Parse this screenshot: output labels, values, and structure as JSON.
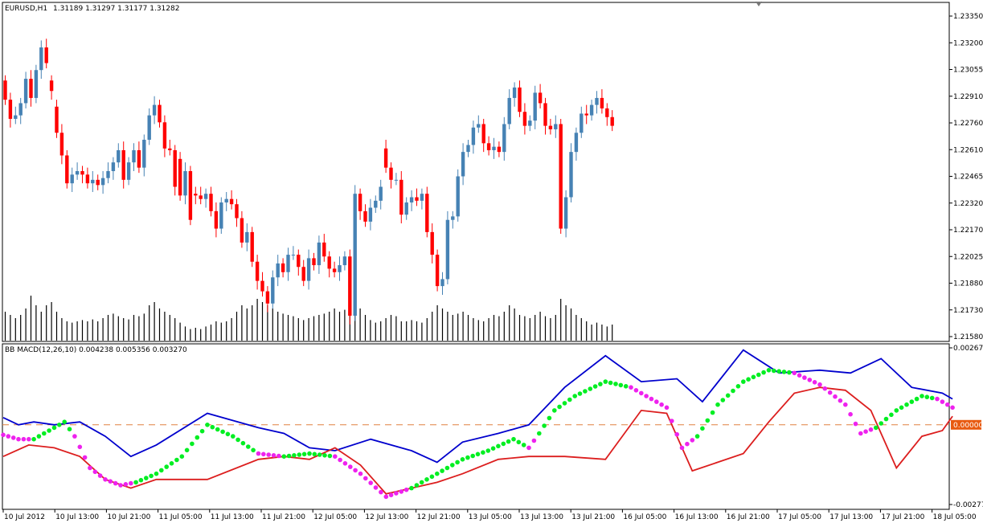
{
  "colors": {
    "background": "#ffffff",
    "frame": "#000000",
    "bull": "#4682b4",
    "bear": "#ff0000",
    "volume": "#000000",
    "macd_upper": "#0000cd",
    "macd_lower": "#dc1e1e",
    "signal_up": "#00ee22",
    "signal_down": "#ee22ee",
    "zero_line": "#e08040",
    "zero_badge": "#e85a10",
    "zero_badge_text": "#ffffff"
  },
  "chart_data": [
    {
      "type": "candlestick",
      "header": {
        "symbol": "EURUSD,H1",
        "ohlc": "1.31189 1.31297 1.31177 1.31282"
      },
      "ylim": [
        1.2158,
        1.2342
      ],
      "y_ticks": [
        "1.23350",
        "1.23200",
        "1.23055",
        "1.22910",
        "1.22760",
        "1.22610",
        "1.22465",
        "1.22320",
        "1.22170",
        "1.22025",
        "1.21880",
        "1.21730",
        "1.21580"
      ],
      "candles_close": [
        1.2294,
        1.2283,
        1.2285,
        1.2292,
        1.2306,
        1.2295,
        1.2311,
        1.2324,
        1.2315,
        1.2299,
        1.2275,
        1.2262,
        1.2246,
        1.2251,
        1.2253,
        1.2251,
        1.2246,
        1.2248,
        1.2245,
        1.2249,
        1.2253,
        1.2258,
        1.2265,
        1.2248,
        1.2258,
        1.2265,
        1.2255,
        1.2271,
        1.2285,
        1.2291,
        1.2281,
        1.2266,
        1.2265,
        1.2244,
        1.2239,
        1.2253,
        1.2225,
        1.2239,
        1.2237,
        1.224,
        1.223,
        1.222,
        1.2235,
        1.2237,
        1.2234,
        1.2226,
        1.2212,
        1.2218,
        1.2201,
        1.219,
        1.2184,
        1.2177,
        1.2192,
        1.22,
        1.2195,
        1.2205,
        1.2205,
        1.2198,
        1.219,
        1.2203,
        1.2199,
        1.2212,
        1.2204,
        1.2197,
        1.2195,
        1.2199,
        1.2204,
        1.217,
        1.224,
        1.223,
        1.2224,
        1.2232,
        1.2236,
        1.2244,
        1.2255,
        1.2248,
        1.2248,
        1.2228,
        1.2235,
        1.2238,
        1.2236,
        1.224,
        1.2218,
        1.2205,
        1.2187,
        1.2191,
        1.2225,
        1.2227,
        1.225,
        1.2264,
        1.2268,
        1.2278,
        1.228,
        1.2269,
        1.2265,
        1.2267,
        1.2264,
        1.228,
        1.2295,
        1.2301,
        1.2287,
        1.2279,
        1.2282,
        1.2298,
        1.2292,
        1.2279,
        1.2277,
        1.228,
        1.222,
        1.2238,
        1.2264,
        1.2275,
        1.2286,
        1.2285,
        1.2291,
        1.2295,
        1.2289,
        1.2284,
        1.2279
      ],
      "candles_open": [
        1.2305,
        1.2294,
        1.2283,
        1.2285,
        1.2292,
        1.2306,
        1.2295,
        1.2311,
        1.2324,
        1.2305,
        1.229,
        1.2275,
        1.2262,
        1.2246,
        1.2251,
        1.2253,
        1.2251,
        1.2246,
        1.2248,
        1.2245,
        1.2249,
        1.2253,
        1.2258,
        1.2265,
        1.2248,
        1.2258,
        1.2265,
        1.2255,
        1.2271,
        1.2285,
        1.2291,
        1.2281,
        1.2266,
        1.2265,
        1.226,
        1.2239,
        1.2253,
        1.224,
        1.2239,
        1.2237,
        1.224,
        1.223,
        1.222,
        1.2235,
        1.2237,
        1.2234,
        1.2226,
        1.2212,
        1.2218,
        1.2201,
        1.219,
        1.2184,
        1.2177,
        1.2192,
        1.22,
        1.2195,
        1.2205,
        1.2205,
        1.2198,
        1.219,
        1.2203,
        1.2199,
        1.2212,
        1.2204,
        1.2197,
        1.2195,
        1.2199,
        1.2204,
        1.217,
        1.224,
        1.223,
        1.2224,
        1.2232,
        1.2236,
        1.2266,
        1.2255,
        1.2248,
        1.2248,
        1.2228,
        1.2235,
        1.2238,
        1.2236,
        1.224,
        1.2218,
        1.2205,
        1.2187,
        1.2191,
        1.2225,
        1.2227,
        1.225,
        1.2264,
        1.2268,
        1.2278,
        1.228,
        1.2269,
        1.2265,
        1.2267,
        1.2264,
        1.228,
        1.2295,
        1.2301,
        1.2287,
        1.2279,
        1.2282,
        1.2298,
        1.2292,
        1.2279,
        1.2277,
        1.228,
        1.222,
        1.2238,
        1.2264,
        1.2275,
        1.2286,
        1.2285,
        1.2291,
        1.2295,
        1.2289,
        1.2284
      ],
      "volume_relative": [
        0.45,
        0.4,
        0.35,
        0.4,
        0.5,
        0.7,
        0.55,
        0.45,
        0.55,
        0.6,
        0.45,
        0.35,
        0.3,
        0.28,
        0.3,
        0.32,
        0.3,
        0.33,
        0.3,
        0.35,
        0.4,
        0.42,
        0.38,
        0.35,
        0.33,
        0.4,
        0.38,
        0.42,
        0.55,
        0.6,
        0.5,
        0.45,
        0.4,
        0.35,
        0.28,
        0.22,
        0.18,
        0.2,
        0.18,
        0.22,
        0.25,
        0.3,
        0.28,
        0.3,
        0.35,
        0.45,
        0.55,
        0.5,
        0.55,
        0.65,
        0.6,
        0.55,
        0.5,
        0.45,
        0.42,
        0.4,
        0.38,
        0.35,
        0.32,
        0.35,
        0.38,
        0.4,
        0.42,
        0.45,
        0.5,
        0.45,
        0.48,
        0.6,
        0.65,
        0.5,
        0.4,
        0.32,
        0.28,
        0.3,
        0.35,
        0.4,
        0.38,
        0.3,
        0.3,
        0.32,
        0.3,
        0.28,
        0.35,
        0.45,
        0.55,
        0.5,
        0.45,
        0.4,
        0.42,
        0.45,
        0.4,
        0.35,
        0.32,
        0.3,
        0.35,
        0.4,
        0.38,
        0.45,
        0.55,
        0.5,
        0.4,
        0.38,
        0.35,
        0.4,
        0.45,
        0.38,
        0.35,
        0.4,
        0.65,
        0.55,
        0.5,
        0.4,
        0.35,
        0.3,
        0.25,
        0.28,
        0.25,
        0.22,
        0.25
      ]
    },
    {
      "type": "line",
      "header": "BB MACD(12,26,10) 0.004238 0.005356 0.003270",
      "ylim": [
        -0.00277,
        0.002675
      ],
      "y_ticks": [
        "0.002675",
        "0.00000",
        "-0.00277"
      ],
      "zero_label": "0.00000",
      "x_ticks": [
        "10 Jul 2012",
        "10 Jul 13:00",
        "10 Jul 21:00",
        "11 Jul 05:00",
        "11 Jul 13:00",
        "11 Jul 21:00",
        "12 Jul 05:00",
        "12 Jul 13:00",
        "12 Jul 21:00",
        "13 Jul 05:00",
        "13 Jul 13:00",
        "13 Jul 21:00",
        "16 Jul 05:00",
        "16 Jul 13:00",
        "16 Jul 21:00",
        "17 Jul 05:00",
        "17 Jul 13:00",
        "17 Jul 21:00",
        "18 Jul 05:00"
      ],
      "upper_band": [
        [
          0,
          0.00025
        ],
        [
          3,
          0.0
        ],
        [
          6,
          0.0001
        ],
        [
          10,
          0.0
        ],
        [
          15,
          0.0001
        ],
        [
          20,
          -0.0004
        ],
        [
          25,
          -0.0011
        ],
        [
          30,
          -0.0007
        ],
        [
          40,
          0.0004
        ],
        [
          50,
          -0.0001
        ],
        [
          55,
          -0.0003
        ],
        [
          60,
          -0.0008
        ],
        [
          65,
          -0.0009
        ],
        [
          72,
          -0.0005
        ],
        [
          80,
          -0.0009
        ],
        [
          85,
          -0.0013
        ],
        [
          90,
          -0.0006
        ],
        [
          97,
          -0.0003
        ],
        [
          103,
          0.0
        ],
        [
          110,
          0.0013
        ],
        [
          118,
          0.0024
        ],
        [
          125,
          0.0015
        ],
        [
          132,
          0.0016
        ],
        [
          137,
          0.0008
        ],
        [
          145,
          0.0026
        ],
        [
          152,
          0.0018
        ],
        [
          160,
          0.0019
        ],
        [
          166,
          0.0018
        ],
        [
          172,
          0.0023
        ],
        [
          178,
          0.0013
        ],
        [
          184,
          0.0011
        ],
        [
          186,
          0.0009
        ]
      ],
      "lower_band": [
        [
          0,
          -0.0011
        ],
        [
          5,
          -0.0007
        ],
        [
          10,
          -0.0008
        ],
        [
          15,
          -0.0011
        ],
        [
          20,
          -0.0019
        ],
        [
          25,
          -0.0022
        ],
        [
          30,
          -0.0019
        ],
        [
          40,
          -0.0019
        ],
        [
          50,
          -0.0012
        ],
        [
          55,
          -0.0011
        ],
        [
          60,
          -0.0012
        ],
        [
          65,
          -0.0008
        ],
        [
          70,
          -0.0014
        ],
        [
          75,
          -0.0024
        ],
        [
          80,
          -0.0022
        ],
        [
          85,
          -0.002
        ],
        [
          90,
          -0.0017
        ],
        [
          97,
          -0.0012
        ],
        [
          103,
          -0.0011
        ],
        [
          110,
          -0.0011
        ],
        [
          118,
          -0.0012
        ],
        [
          125,
          0.0005
        ],
        [
          130,
          0.0004
        ],
        [
          135,
          -0.0016
        ],
        [
          140,
          -0.0013
        ],
        [
          145,
          -0.001
        ],
        [
          150,
          0.0001
        ],
        [
          155,
          0.0011
        ],
        [
          160,
          0.0013
        ],
        [
          165,
          0.0012
        ],
        [
          170,
          0.0005
        ],
        [
          175,
          -0.0015
        ],
        [
          180,
          -0.0004
        ],
        [
          184,
          -0.0002
        ],
        [
          186,
          0.0003
        ]
      ],
      "signal_dots": [
        [
          0,
          -0.00035,
          "down"
        ],
        [
          3,
          -0.0005,
          "down"
        ],
        [
          6,
          -0.0005,
          "up"
        ],
        [
          9,
          -0.0002,
          "up"
        ],
        [
          12,
          0.0001,
          "up"
        ],
        [
          14,
          -0.0004,
          "down"
        ],
        [
          17,
          -0.0015,
          "down"
        ],
        [
          20,
          -0.0019,
          "down"
        ],
        [
          23,
          -0.0021,
          "down"
        ],
        [
          26,
          -0.002,
          "up"
        ],
        [
          30,
          -0.0017,
          "up"
        ],
        [
          35,
          -0.0011,
          "up"
        ],
        [
          40,
          0.0,
          "up"
        ],
        [
          45,
          -0.0004,
          "up"
        ],
        [
          50,
          -0.001,
          "down"
        ],
        [
          55,
          -0.0011,
          "up"
        ],
        [
          60,
          -0.001,
          "up"
        ],
        [
          65,
          -0.0011,
          "down"
        ],
        [
          70,
          -0.0017,
          "down"
        ],
        [
          75,
          -0.0025,
          "down"
        ],
        [
          80,
          -0.0022,
          "up"
        ],
        [
          85,
          -0.0017,
          "up"
        ],
        [
          90,
          -0.0012,
          "up"
        ],
        [
          95,
          -0.0009,
          "up"
        ],
        [
          100,
          -0.0005,
          "up"
        ],
        [
          103,
          -0.0008,
          "down"
        ],
        [
          105,
          -0.0003,
          "up"
        ],
        [
          108,
          0.0005,
          "up"
        ],
        [
          112,
          0.001,
          "up"
        ],
        [
          118,
          0.0015,
          "up"
        ],
        [
          123,
          0.0013,
          "down"
        ],
        [
          127,
          0.0009,
          "down"
        ],
        [
          130,
          0.0006,
          "down"
        ],
        [
          133,
          -0.0008,
          "down"
        ],
        [
          136,
          -0.0004,
          "up"
        ],
        [
          140,
          0.0007,
          "up"
        ],
        [
          145,
          0.0015,
          "up"
        ],
        [
          150,
          0.0019,
          "up"
        ],
        [
          155,
          0.0018,
          "down"
        ],
        [
          160,
          0.0014,
          "down"
        ],
        [
          165,
          0.0007,
          "down"
        ],
        [
          168,
          -0.0003,
          "down"
        ],
        [
          171,
          -0.0001,
          "up"
        ],
        [
          175,
          0.0005,
          "up"
        ],
        [
          180,
          0.001,
          "up"
        ],
        [
          183,
          0.0009,
          "down"
        ],
        [
          186,
          0.0006,
          "down"
        ]
      ]
    }
  ]
}
